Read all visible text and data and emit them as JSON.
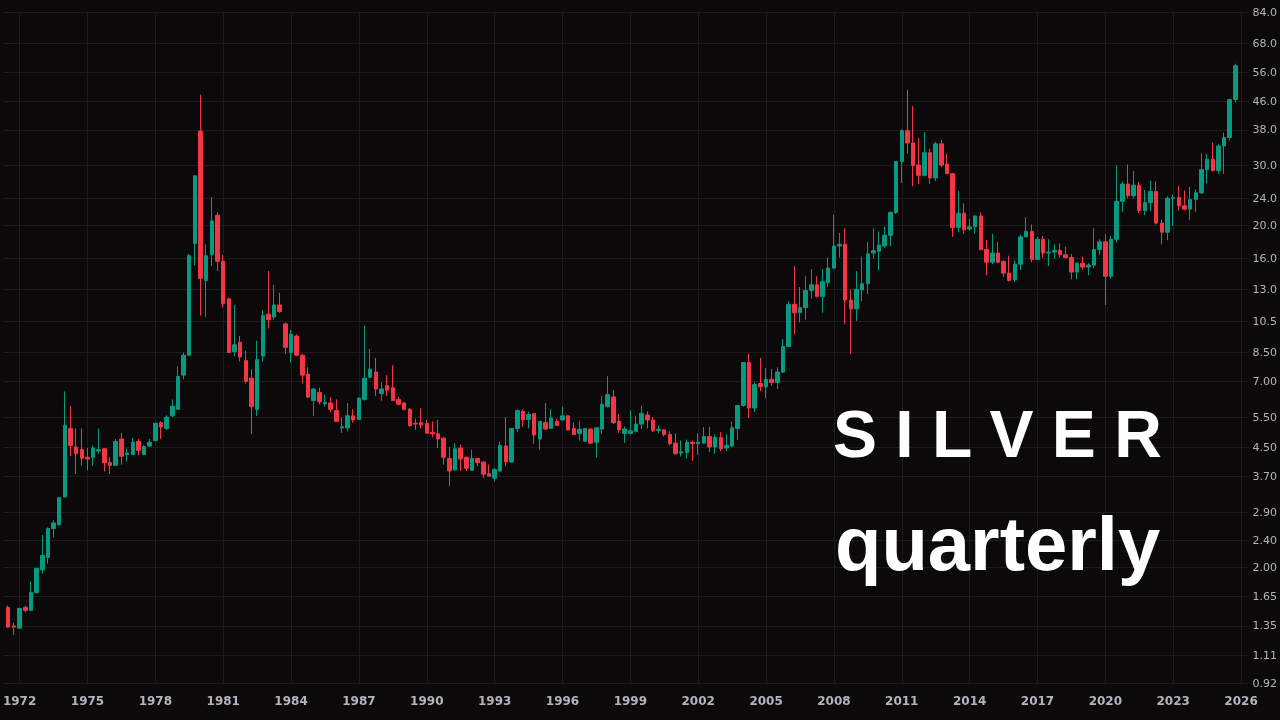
{
  "chart_data": {
    "type": "candlestick",
    "title": "S I L V E R",
    "subtitle": "quarterly",
    "x": [
      "1971-07",
      "1971-10",
      "1972-01",
      "1972-04",
      "1972-07",
      "1972-10",
      "1973-01",
      "1973-04",
      "1973-07",
      "1973-10",
      "1974-01",
      "1974-04",
      "1974-07",
      "1974-10",
      "1975-01",
      "1975-04",
      "1975-07",
      "1975-10",
      "1976-01",
      "1976-04",
      "1976-07",
      "1976-10",
      "1977-01",
      "1977-04",
      "1977-07",
      "1977-10",
      "1978-01",
      "1978-04",
      "1978-07",
      "1978-10",
      "1979-01",
      "1979-04",
      "1979-07",
      "1979-10",
      "1980-01",
      "1980-04",
      "1980-07",
      "1980-10",
      "1981-01",
      "1981-04",
      "1981-07",
      "1981-10",
      "1982-01",
      "1982-04",
      "1982-07",
      "1982-10",
      "1983-01",
      "1983-04",
      "1983-07",
      "1983-10",
      "1984-01",
      "1984-04",
      "1984-07",
      "1984-10",
      "1985-01",
      "1985-04",
      "1985-07",
      "1985-10",
      "1986-01",
      "1986-04",
      "1986-07",
      "1986-10",
      "1987-01",
      "1987-04",
      "1987-07",
      "1987-10",
      "1988-01",
      "1988-04",
      "1988-07",
      "1988-10",
      "1989-01",
      "1989-04",
      "1989-07",
      "1989-10",
      "1990-01",
      "1990-04",
      "1990-07",
      "1990-10",
      "1991-01",
      "1991-04",
      "1991-07",
      "1991-10",
      "1992-01",
      "1992-04",
      "1992-07",
      "1992-10",
      "1993-01",
      "1993-04",
      "1993-07",
      "1993-10",
      "1994-01",
      "1994-04",
      "1994-07",
      "1994-10",
      "1995-01",
      "1995-04",
      "1995-07",
      "1995-10",
      "1996-01",
      "1996-04",
      "1996-07",
      "1996-10",
      "1997-01",
      "1997-04",
      "1997-07",
      "1997-10",
      "1998-01",
      "1998-04",
      "1998-07",
      "1998-10",
      "1999-01",
      "1999-04",
      "1999-07",
      "1999-10",
      "2000-01",
      "2000-04",
      "2000-07",
      "2000-10",
      "2001-01",
      "2001-04",
      "2001-07",
      "2001-10",
      "2002-01",
      "2002-04",
      "2002-07",
      "2002-10",
      "2003-01",
      "2003-04",
      "2003-07",
      "2003-10",
      "2004-01",
      "2004-04",
      "2004-07",
      "2004-10",
      "2005-01",
      "2005-04",
      "2005-07",
      "2005-10",
      "2006-01",
      "2006-04",
      "2006-07",
      "2006-10",
      "2007-01",
      "2007-04",
      "2007-07",
      "2007-10",
      "2008-01",
      "2008-04",
      "2008-07",
      "2008-10",
      "2009-01",
      "2009-04",
      "2009-07",
      "2009-10",
      "2010-01",
      "2010-04",
      "2010-07",
      "2010-10",
      "2011-01",
      "2011-04",
      "2011-07",
      "2011-10",
      "2012-01",
      "2012-04",
      "2012-07",
      "2012-10",
      "2013-01",
      "2013-04",
      "2013-07",
      "2013-10",
      "2014-01",
      "2014-04",
      "2014-07",
      "2014-10",
      "2015-01",
      "2015-04",
      "2015-07",
      "2015-10",
      "2016-01",
      "2016-04",
      "2016-07",
      "2016-10",
      "2017-01",
      "2017-04",
      "2017-07",
      "2017-10",
      "2018-01",
      "2018-04",
      "2018-07",
      "2018-10",
      "2019-01",
      "2019-04",
      "2019-07",
      "2019-10",
      "2020-01",
      "2020-04",
      "2020-07",
      "2020-10",
      "2021-01",
      "2021-04",
      "2021-07",
      "2021-10",
      "2022-01",
      "2022-04",
      "2022-07",
      "2022-10",
      "2023-01",
      "2023-04",
      "2023-07",
      "2023-10",
      "2024-01",
      "2024-04",
      "2024-07",
      "2024-10",
      "2025-01",
      "2025-04",
      "2025-07",
      "2025-10"
    ],
    "ohlc": [
      [
        1.53,
        1.55,
        1.33,
        1.34
      ],
      [
        1.35,
        1.38,
        1.27,
        1.34
      ],
      [
        1.33,
        1.52,
        1.33,
        1.52
      ],
      [
        1.53,
        1.55,
        1.48,
        1.5
      ],
      [
        1.5,
        1.82,
        1.49,
        1.69
      ],
      [
        1.69,
        1.99,
        1.68,
        1.99
      ],
      [
        1.97,
        2.49,
        1.92,
        2.17
      ],
      [
        2.14,
        2.62,
        2.05,
        2.6
      ],
      [
        2.6,
        2.75,
        2.45,
        2.7
      ],
      [
        2.67,
        3.2,
        2.65,
        3.2
      ],
      [
        3.22,
        6.54,
        3.2,
        5.21
      ],
      [
        5.1,
        5.92,
        4.23,
        4.55
      ],
      [
        4.5,
        5.1,
        3.75,
        4.3
      ],
      [
        4.43,
        5.1,
        3.97,
        4.17
      ],
      [
        4.2,
        4.47,
        3.85,
        4.15
      ],
      [
        4.2,
        4.55,
        3.97,
        4.47
      ],
      [
        4.38,
        5.1,
        4.3,
        4.42
      ],
      [
        4.45,
        4.47,
        3.82,
        4.05
      ],
      [
        4.05,
        4.2,
        3.75,
        3.98
      ],
      [
        3.98,
        4.75,
        3.96,
        4.67
      ],
      [
        4.75,
        4.95,
        4.0,
        4.23
      ],
      [
        4.28,
        4.45,
        4.08,
        4.32
      ],
      [
        4.28,
        4.78,
        4.26,
        4.65
      ],
      [
        4.67,
        4.75,
        4.26,
        4.4
      ],
      [
        4.28,
        4.55,
        4.26,
        4.52
      ],
      [
        4.53,
        4.75,
        4.5,
        4.65
      ],
      [
        4.7,
        5.3,
        4.67,
        5.28
      ],
      [
        5.3,
        5.35,
        4.75,
        5.15
      ],
      [
        5.1,
        5.57,
        5.05,
        5.5
      ],
      [
        5.55,
        6.2,
        5.5,
        5.92
      ],
      [
        5.8,
        7.74,
        5.8,
        7.23
      ],
      [
        7.3,
        8.5,
        7.1,
        8.35
      ],
      [
        8.35,
        16.5,
        8.3,
        16.3
      ],
      [
        17.7,
        28,
        15.3,
        27.9
      ],
      [
        37.7,
        48.2,
        10.9,
        14
      ],
      [
        13.8,
        17.6,
        10.8,
        16.3
      ],
      [
        16.4,
        24.2,
        15.2,
        20.6
      ],
      [
        21.4,
        21.8,
        14.7,
        15.7
      ],
      [
        15.7,
        16.4,
        11.5,
        11.8
      ],
      [
        12.2,
        12.3,
        8.5,
        8.5
      ],
      [
        8.55,
        11.7,
        8.3,
        8.95
      ],
      [
        9.1,
        9.5,
        8,
        8.25
      ],
      [
        8.05,
        8.6,
        6.9,
        7
      ],
      [
        7.15,
        7.6,
        4.91,
        5.9
      ],
      [
        5.8,
        9.2,
        5.55,
        8.1
      ],
      [
        8.3,
        11.3,
        8,
        10.9
      ],
      [
        11,
        14.7,
        10,
        10.6
      ],
      [
        10.8,
        13.4,
        10.6,
        11.7
      ],
      [
        11.7,
        12.7,
        11.1,
        11.2
      ],
      [
        10.3,
        10.4,
        8.4,
        8.8
      ],
      [
        8.5,
        9.9,
        7.95,
        9.6
      ],
      [
        9.5,
        9.6,
        8.3,
        8.35
      ],
      [
        8.35,
        8.4,
        6.9,
        7.3
      ],
      [
        7.35,
        7.7,
        6.25,
        6.3
      ],
      [
        6.15,
        6.7,
        5.55,
        6.65
      ],
      [
        6.5,
        6.7,
        6,
        6.1
      ],
      [
        6.02,
        6.4,
        5.9,
        6.08
      ],
      [
        6.05,
        6.3,
        5.7,
        5.8
      ],
      [
        5.75,
        6.2,
        5.35,
        5.35
      ],
      [
        5.12,
        5.5,
        4.95,
        5.16
      ],
      [
        5.12,
        6.05,
        5,
        5.55
      ],
      [
        5.55,
        5.8,
        5.3,
        5.4
      ],
      [
        5.42,
        6.3,
        5.4,
        6.25
      ],
      [
        6.2,
        10.2,
        6.15,
        7.15
      ],
      [
        7.2,
        8.7,
        7.15,
        7.6
      ],
      [
        7.45,
        8.2,
        6.35,
        6.65
      ],
      [
        6.45,
        6.95,
        6.15,
        6.65
      ],
      [
        6.8,
        7.3,
        6.35,
        6.6
      ],
      [
        6.7,
        7.8,
        6.15,
        6.15
      ],
      [
        6.2,
        6.3,
        5.95,
        6
      ],
      [
        6.05,
        6.1,
        5.75,
        5.8
      ],
      [
        5.8,
        5.85,
        5.15,
        5.2
      ],
      [
        5.28,
        5.45,
        5.05,
        5.25
      ],
      [
        5.3,
        5.84,
        5.1,
        5.22
      ],
      [
        5.27,
        5.4,
        4.94,
        4.94
      ],
      [
        4.97,
        5.35,
        4.8,
        4.92
      ],
      [
        4.92,
        5.4,
        4.47,
        4.75
      ],
      [
        4.78,
        4.8,
        4,
        4.2
      ],
      [
        4.17,
        4.5,
        3.46,
        3.83
      ],
      [
        3.86,
        4.62,
        3.83,
        4.45
      ],
      [
        4.47,
        4.58,
        3.83,
        4.15
      ],
      [
        4.2,
        4.22,
        3.83,
        3.9
      ],
      [
        3.85,
        4.42,
        3.83,
        4.17
      ],
      [
        4.17,
        4.18,
        3.95,
        4.05
      ],
      [
        4.07,
        4.08,
        3.65,
        3.75
      ],
      [
        3.76,
        4,
        3.7,
        3.7
      ],
      [
        3.65,
        3.9,
        3.57,
        3.87
      ],
      [
        3.83,
        4.67,
        3.8,
        4.55
      ],
      [
        4.53,
        5.5,
        3.95,
        4.07
      ],
      [
        4.07,
        5.1,
        4.05,
        5.1
      ],
      [
        5.1,
        5.8,
        4.97,
        5.75
      ],
      [
        5.72,
        5.8,
        5.15,
        5.4
      ],
      [
        5.42,
        5.7,
        5.1,
        5.6
      ],
      [
        5.63,
        5.65,
        4.6,
        4.88
      ],
      [
        4.75,
        5.35,
        4.42,
        5.35
      ],
      [
        5.3,
        6.05,
        5.05,
        5.08
      ],
      [
        5.1,
        5.8,
        5.08,
        5.47
      ],
      [
        5.35,
        5.45,
        5.18,
        5.2
      ],
      [
        5.4,
        5.9,
        5.38,
        5.55
      ],
      [
        5.55,
        5.57,
        5.03,
        5.05
      ],
      [
        5.1,
        5.3,
        4.88,
        4.9
      ],
      [
        4.93,
        5.37,
        4.7,
        5.07
      ],
      [
        4.68,
        5.1,
        4.66,
        5.1
      ],
      [
        5.08,
        5.1,
        4.6,
        4.62
      ],
      [
        4.65,
        5.14,
        4.2,
        5.12
      ],
      [
        5.08,
        6.35,
        4.92,
        6
      ],
      [
        5.9,
        7.25,
        5.88,
        6.4
      ],
      [
        6.3,
        6.6,
        5.25,
        5.3
      ],
      [
        5.35,
        5.62,
        4.95,
        5.05
      ],
      [
        4.93,
        5.17,
        4.63,
        5.08
      ],
      [
        4.93,
        5.76,
        4.9,
        5.02
      ],
      [
        5,
        5.55,
        4.97,
        5.25
      ],
      [
        5.25,
        5.95,
        5.08,
        5.65
      ],
      [
        5.58,
        5.72,
        5.1,
        5.4
      ],
      [
        5.4,
        5.5,
        4.98,
        5.02
      ],
      [
        5.03,
        5.2,
        4.93,
        5.07
      ],
      [
        5.05,
        5.07,
        4.83,
        4.9
      ],
      [
        4.9,
        5,
        4.55,
        4.6
      ],
      [
        4.62,
        4.93,
        4.28,
        4.3
      ],
      [
        4.32,
        4.7,
        4.22,
        4.36
      ],
      [
        4.34,
        4.73,
        4.17,
        4.65
      ],
      [
        4.65,
        4.7,
        4.1,
        4.6
      ],
      [
        4.6,
        4.93,
        4.27,
        4.65
      ],
      [
        4.62,
        5.15,
        4.6,
        4.83
      ],
      [
        4.83,
        5.15,
        4.35,
        4.5
      ],
      [
        4.5,
        4.9,
        4.3,
        4.8
      ],
      [
        4.8,
        4.97,
        4.38,
        4.45
      ],
      [
        4.47,
        4.9,
        4.38,
        4.55
      ],
      [
        4.53,
        5.35,
        4.5,
        5.12
      ],
      [
        5.1,
        5.95,
        4.72,
        5.95
      ],
      [
        5.95,
        7.95,
        5.9,
        7.95
      ],
      [
        7.95,
        8.45,
        5.47,
        5.85
      ],
      [
        5.85,
        6.95,
        5.7,
        6.85
      ],
      [
        6.9,
        8.2,
        6.55,
        6.75
      ],
      [
        6.75,
        7.65,
        6.25,
        7.1
      ],
      [
        7.1,
        7.6,
        6.8,
        6.95
      ],
      [
        6.95,
        7.7,
        6.65,
        7.45
      ],
      [
        7.45,
        9.3,
        7.4,
        8.85
      ],
      [
        8.85,
        12,
        8.8,
        11.75
      ],
      [
        11.75,
        15.2,
        9.6,
        11.1
      ],
      [
        11.1,
        13.2,
        10.4,
        11.5
      ],
      [
        11.5,
        14.2,
        10.6,
        12.9
      ],
      [
        12.9,
        14.9,
        12.2,
        13.4
      ],
      [
        13.4,
        14.2,
        12.3,
        12.4
      ],
      [
        12.4,
        14.9,
        11.1,
        13.7
      ],
      [
        13.6,
        16.1,
        13.2,
        15
      ],
      [
        15,
        21.5,
        14.9,
        17.4
      ],
      [
        17.4,
        19,
        16.1,
        17.6
      ],
      [
        17.6,
        19.6,
        10.3,
        12.1
      ],
      [
        12.1,
        13,
        8.4,
        11.4
      ],
      [
        11.4,
        14.7,
        10.5,
        13
      ],
      [
        12.95,
        16.2,
        12,
        13.5
      ],
      [
        13.5,
        17.9,
        12.6,
        16.5
      ],
      [
        16.6,
        19.6,
        16,
        16.85
      ],
      [
        16.8,
        19.2,
        14.8,
        17.5
      ],
      [
        17.4,
        19.8,
        17.2,
        18.7
      ],
      [
        18.7,
        22,
        17.4,
        21.8
      ],
      [
        21.8,
        30.7,
        21.6,
        30.7
      ],
      [
        30.7,
        38.2,
        26.6,
        37.8
      ],
      [
        37.8,
        49.8,
        32.4,
        34.8
      ],
      [
        34.8,
        44.6,
        26,
        29.9
      ],
      [
        30,
        36,
        26.4,
        28
      ],
      [
        28,
        37.4,
        27.8,
        32.6
      ],
      [
        32.6,
        33.5,
        26.4,
        27.5
      ],
      [
        27.5,
        35.1,
        26.9,
        34.6
      ],
      [
        34.6,
        35.6,
        29.6,
        30
      ],
      [
        30.2,
        32.4,
        28.3,
        28.3
      ],
      [
        28.3,
        28.4,
        18.5,
        19.7
      ],
      [
        19.7,
        25.2,
        19.1,
        21.7
      ],
      [
        21.7,
        23.2,
        18.9,
        19.4
      ],
      [
        19.5,
        20.9,
        19.3,
        19.8
      ],
      [
        19.8,
        21.4,
        18.9,
        21.3
      ],
      [
        21.3,
        21.8,
        16.9,
        17
      ],
      [
        17,
        18.1,
        14.3,
        15.6
      ],
      [
        15.6,
        18.9,
        15.4,
        16.6
      ],
      [
        16.6,
        17.9,
        15.5,
        15.6
      ],
      [
        15.7,
        15.8,
        14.1,
        14.5
      ],
      [
        14.5,
        16.3,
        13.7,
        13.8
      ],
      [
        13.85,
        15.8,
        13.65,
        15.4
      ],
      [
        15.4,
        18.8,
        14.8,
        18.5
      ],
      [
        18.5,
        21.1,
        18.5,
        19.2
      ],
      [
        19.2,
        20.1,
        15.6,
        15.9
      ],
      [
        15.9,
        18.5,
        15.9,
        18.2
      ],
      [
        18.2,
        18.6,
        16.1,
        16.6
      ],
      [
        16.6,
        18.2,
        15.2,
        16.7
      ],
      [
        16.7,
        17.6,
        16,
        16.9
      ],
      [
        16.9,
        17.7,
        16.1,
        16.4
      ],
      [
        16.4,
        17.3,
        16,
        16.1
      ],
      [
        16.1,
        16.5,
        13.9,
        14.6
      ],
      [
        14.6,
        15.6,
        13.9,
        15.5
      ],
      [
        15.5,
        16.2,
        14.8,
        15.1
      ],
      [
        15.1,
        15.5,
        14.3,
        15.3
      ],
      [
        15.3,
        19.6,
        15,
        17
      ],
      [
        17,
        18.2,
        16.4,
        17.9
      ],
      [
        17.9,
        18.9,
        11.7,
        14.2
      ],
      [
        14.2,
        18.6,
        14,
        18.2
      ],
      [
        18.2,
        29.9,
        17.8,
        23.5
      ],
      [
        23.5,
        26.9,
        21.9,
        26.4
      ],
      [
        26.4,
        30.1,
        24,
        24.4
      ],
      [
        24.4,
        28.8,
        24,
        26.2
      ],
      [
        26.2,
        26.8,
        21.7,
        22.1
      ],
      [
        22.1,
        25.4,
        21.4,
        23.3
      ],
      [
        23.3,
        27,
        22,
        25.1
      ],
      [
        25.1,
        26.9,
        20.1,
        20.3
      ],
      [
        20.3,
        20.8,
        17.6,
        19.1
      ],
      [
        19.1,
        24.3,
        18.1,
        24
      ],
      [
        24,
        24.6,
        19.9,
        24.1
      ],
      [
        24.1,
        26.1,
        22.1,
        22.8
      ],
      [
        22.8,
        25.3,
        22.1,
        22.3
      ],
      [
        22.3,
        25.9,
        20.7,
        23.8
      ],
      [
        23.8,
        25.5,
        21.9,
        24.9
      ],
      [
        24.9,
        32.5,
        24.7,
        29.1
      ],
      [
        29.1,
        32.3,
        26.5,
        31.2
      ],
      [
        31.2,
        34.9,
        28.7,
        28.9
      ],
      [
        28.9,
        34.6,
        28.3,
        34.1
      ],
      [
        34.1,
        37.3,
        28.3,
        36.1
      ],
      [
        36.1,
        46.9,
        35.4,
        46.6
      ],
      [
        46.6,
        59.3,
        45.6,
        58.5
      ]
    ],
    "colors": [
      "#f23645",
      "#f23645",
      "#089981",
      "#f23645",
      "#089981",
      "#089981",
      "#089981",
      "#089981",
      "#089981",
      "#089981",
      "#089981",
      "#f23645",
      "#f23645",
      "#f23645",
      "#f23645",
      "#089981",
      "#089981",
      "#f23645",
      "#f23645",
      "#089981",
      "#f23645",
      "#089981",
      "#089981",
      "#f23645",
      "#089981",
      "#089981",
      "#089981",
      "#f23645",
      "#089981",
      "#089981",
      "#089981",
      "#089981",
      "#089981",
      "#089981",
      "#f23645",
      "#089981",
      "#089981",
      "#f23645",
      "#f23645",
      "#f23645",
      "#089981",
      "#f23645",
      "#f23645",
      "#f23645",
      "#089981",
      "#089981",
      "#f23645",
      "#089981",
      "#f23645",
      "#f23645",
      "#089981",
      "#f23645",
      "#f23645",
      "#f23645",
      "#089981",
      "#f23645",
      "#089981",
      "#f23645",
      "#f23645",
      "#089981",
      "#089981",
      "#f23645",
      "#089981",
      "#089981",
      "#089981",
      "#f23645",
      "#089981",
      "#f23645",
      "#f23645",
      "#f23645",
      "#f23645",
      "#f23645",
      "#f23645",
      "#f23645",
      "#f23645",
      "#f23645",
      "#f23645",
      "#f23645",
      "#f23645",
      "#089981",
      "#f23645",
      "#f23645",
      "#089981",
      "#f23645",
      "#f23645",
      "#f23645",
      "#089981",
      "#089981",
      "#f23645",
      "#089981",
      "#089981",
      "#f23645",
      "#089981",
      "#f23645",
      "#089981",
      "#f23645",
      "#089981",
      "#f23645",
      "#089981",
      "#f23645",
      "#f23645",
      "#089981",
      "#089981",
      "#f23645",
      "#089981",
      "#089981",
      "#089981",
      "#f23645",
      "#f23645",
      "#089981",
      "#089981",
      "#089981",
      "#089981",
      "#f23645",
      "#f23645",
      "#089981",
      "#f23645",
      "#f23645",
      "#f23645",
      "#089981",
      "#089981",
      "#f23645",
      "#089981",
      "#089981",
      "#f23645",
      "#089981",
      "#f23645",
      "#089981",
      "#089981",
      "#089981",
      "#089981",
      "#f23645",
      "#089981",
      "#f23645",
      "#089981",
      "#f23645",
      "#089981",
      "#089981",
      "#089981",
      "#f23645",
      "#089981",
      "#089981",
      "#089981",
      "#f23645",
      "#089981",
      "#089981",
      "#089981",
      "#089981",
      "#f23645",
      "#f23645",
      "#089981",
      "#089981",
      "#089981",
      "#089981",
      "#089981",
      "#089981",
      "#089981",
      "#089981",
      "#089981",
      "#f23645",
      "#f23645",
      "#f23645",
      "#089981",
      "#f23645",
      "#089981",
      "#f23645",
      "#f23645",
      "#f23645",
      "#089981",
      "#f23645",
      "#089981",
      "#089981",
      "#f23645",
      "#f23645",
      "#089981",
      "#f23645",
      "#f23645",
      "#f23645",
      "#089981",
      "#089981",
      "#089981",
      "#f23645",
      "#089981",
      "#f23645",
      "#089981",
      "#089981",
      "#f23645",
      "#f23645",
      "#f23645",
      "#089981",
      "#f23645",
      "#089981",
      "#089981",
      "#089981",
      "#f23645",
      "#089981",
      "#089981",
      "#089981",
      "#f23645",
      "#089981",
      "#f23645",
      "#089981",
      "#089981",
      "#f23645",
      "#f23645",
      "#089981",
      "#089981",
      "#f23645",
      "#f23645",
      "#089981",
      "#089981",
      "#089981",
      "#089981",
      "#f23645",
      "#089981",
      "#089981",
      "#089981",
      "#089981"
    ],
    "xlim": [
      "1971-04-15",
      "2026-05-01"
    ],
    "xticks": [
      "1972",
      "1975",
      "1978",
      "1981",
      "1984",
      "1987",
      "1990",
      "1993",
      "1996",
      "1999",
      "2002",
      "2005",
      "2008",
      "2011",
      "2014",
      "2017",
      "2020",
      "2023",
      "2026"
    ],
    "ylim": [
      0.92,
      84
    ],
    "yticks": [
      0.92,
      {
        "value": 1.11,
        "label": "1.11"
      },
      {
        "value": 1.35,
        "label": "1.35"
      },
      {
        "value": 1.65,
        "label": "1.65"
      },
      {
        "value": 2,
        "label": "2.00"
      },
      {
        "value": 2.4,
        "label": "2.40"
      },
      {
        "value": 2.9,
        "label": "2.90"
      },
      {
        "value": 3.7,
        "label": "3.70"
      },
      {
        "value": 4.5,
        "label": "4.50"
      },
      {
        "value": 5.5,
        "label": "5.50"
      },
      {
        "value": 7,
        "label": "7.00"
      },
      {
        "value": 8.5,
        "label": "8.50"
      },
      {
        "value": 10.5,
        "label": "10.5"
      },
      {
        "value": 13,
        "label": "13.0"
      },
      {
        "value": 16,
        "label": "16.0"
      },
      {
        "value": 20,
        "label": "20.0"
      },
      {
        "value": 24,
        "label": "24.0"
      },
      {
        "value": 30,
        "label": "30.0"
      },
      {
        "value": 38,
        "label": "38.0"
      },
      {
        "value": 46,
        "label": "46.0"
      },
      {
        "value": 56,
        "label": "56.0"
      },
      {
        "value": 68,
        "label": "68.0"
      },
      {
        "value": 84,
        "label": "84.0"
      }
    ],
    "log": "y",
    "grid": true
  }
}
